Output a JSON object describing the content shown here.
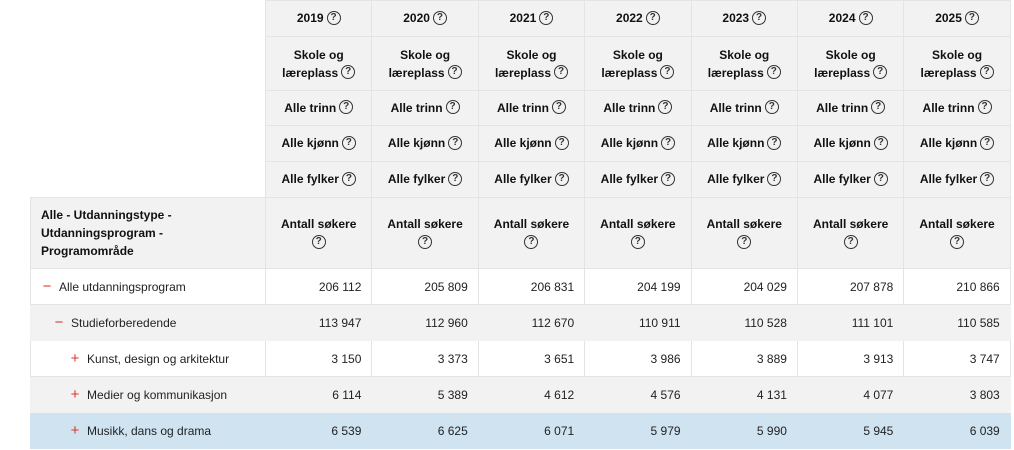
{
  "years": [
    "2019",
    "2020",
    "2021",
    "2022",
    "2023",
    "2024",
    "2025"
  ],
  "filters": {
    "skole": [
      "Skole og",
      "læreplass"
    ],
    "trinn": "Alle trinn",
    "kjonn": "Alle kjønn",
    "fylker": "Alle fylker"
  },
  "dimension_header": [
    "Alle - Utdanningstype -",
    "Utdanningsprogram -",
    "Programområde"
  ],
  "measure_label": "Antall søkere",
  "help_glyph": "?",
  "rows": [
    {
      "toggle": "−",
      "label": "Alle utdanningsprogram",
      "values": [
        "206 112",
        "205 809",
        "206 831",
        "204 199",
        "204 029",
        "207 878",
        "210 866"
      ]
    },
    {
      "toggle": "−",
      "label": "Studieforberedende",
      "values": [
        "113 947",
        "112 960",
        "112 670",
        "110 911",
        "110 528",
        "111 101",
        "110 585"
      ]
    },
    {
      "toggle": "+",
      "label": "Kunst, design og arkitektur",
      "values": [
        "3 150",
        "3 373",
        "3 651",
        "3 986",
        "3 889",
        "3 913",
        "3 747"
      ]
    },
    {
      "toggle": "+",
      "label": "Medier og kommunikasjon",
      "values": [
        "6 114",
        "5 389",
        "4 612",
        "4 576",
        "4 131",
        "4 077",
        "3 803"
      ]
    },
    {
      "toggle": "+",
      "label": "Musikk, dans og drama",
      "values": [
        "6 539",
        "6 625",
        "6 071",
        "5 979",
        "5 990",
        "5 945",
        "6 039"
      ]
    }
  ],
  "colors": {
    "toggle_red": "#e0352b",
    "selected_row": "#cfe3f1",
    "header_bg": "#f2f2f2"
  }
}
